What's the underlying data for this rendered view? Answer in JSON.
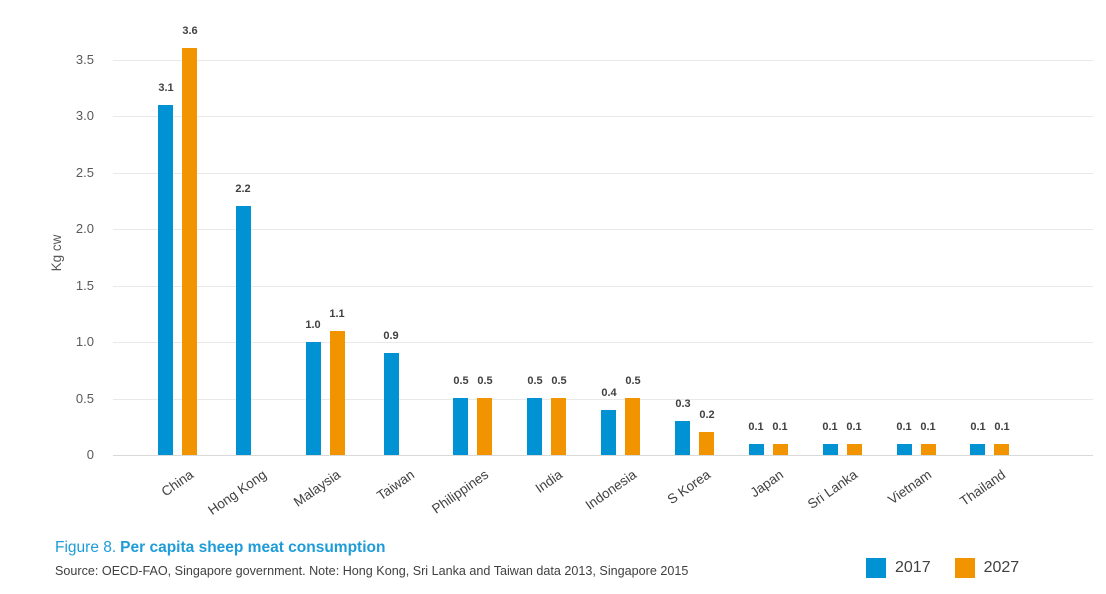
{
  "figure": {
    "label": "Figure 8.",
    "title": "Per capita sheep meat consumption",
    "source": "Source: OECD-FAO, Singapore government. Note: Hong Kong, Sri Lanka and Taiwan data 2013, Singapore 2015"
  },
  "legend": [
    {
      "label": "2017",
      "color": "#0092d3"
    },
    {
      "label": "2027",
      "color": "#f29400"
    }
  ],
  "chart_data": {
    "type": "bar",
    "title": "Per capita sheep meat consumption",
    "ylabel": "Kg cw",
    "categories": [
      "China",
      "Hong Kong",
      "Malaysia",
      "Taiwan",
      "Philippines",
      "India",
      "Indonesia",
      "S Korea",
      "Japan",
      "Sri Lanka",
      "Vietnam",
      "Thailand"
    ],
    "series": [
      {
        "name": "2017",
        "color": "#0092d3",
        "values": [
          3.1,
          2.2,
          1.0,
          0.9,
          0.5,
          0.5,
          0.4,
          0.3,
          0.1,
          0.1,
          0.1,
          0.1
        ]
      },
      {
        "name": "2027",
        "color": "#f29400",
        "values": [
          3.6,
          null,
          1.1,
          null,
          0.5,
          0.5,
          0.5,
          0.2,
          0.1,
          0.1,
          0.1,
          0.1
        ]
      }
    ],
    "yticks": [
      {
        "v": 0,
        "label": "0"
      },
      {
        "v": 0.5,
        "label": "0.5"
      },
      {
        "v": 1,
        "label": "1.0"
      },
      {
        "v": 1.5,
        "label": "1.5"
      },
      {
        "v": 2,
        "label": "2.0"
      },
      {
        "v": 2.5,
        "label": "2.5"
      },
      {
        "v": 3,
        "label": "3.0"
      },
      {
        "v": 3.5,
        "label": "3.5"
      }
    ],
    "ylim": [
      0,
      3.85
    ],
    "grid": true,
    "legend_position": "bottom-right",
    "notes": "Hong Kong and Taiwan show 2017 series only"
  }
}
